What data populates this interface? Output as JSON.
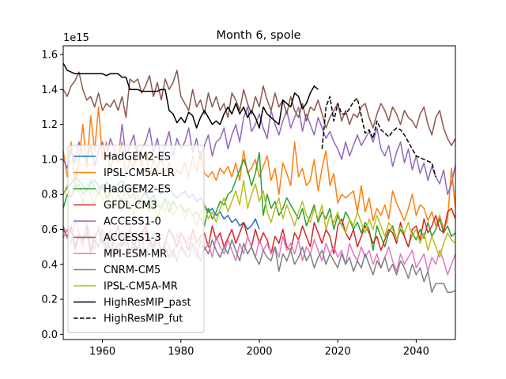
{
  "chart_data": {
    "type": "line",
    "title": "Month 6, spole",
    "xlabel": "",
    "ylabel": "",
    "y_offset_label": "1e15",
    "xlim": [
      1950,
      2050
    ],
    "ylim": [
      -0.03,
      1.65
    ],
    "x_ticks": [
      1960,
      1980,
      2000,
      2020,
      2040
    ],
    "y_ticks": [
      0.0,
      0.2,
      0.4,
      0.6,
      0.8,
      1.0,
      1.2,
      1.4,
      1.6
    ],
    "y_tick_labels": [
      "0.0",
      "0.2",
      "0.4",
      "0.6",
      "0.8",
      "1.0",
      "1.2",
      "1.4",
      "1.6"
    ],
    "grid": false,
    "legend_position": "lower-left",
    "series": [
      {
        "name": "HadGEM2-ES",
        "color": "#1f77b4",
        "style": "solid",
        "start": 1950,
        "values": [
          0.8,
          0.84,
          0.86,
          0.9,
          0.88,
          0.85,
          0.82,
          0.86,
          0.88,
          0.85,
          0.83,
          0.87,
          0.85,
          0.82,
          0.86,
          0.88,
          0.84,
          0.82,
          0.85,
          0.86,
          0.84,
          0.8,
          0.82,
          0.85,
          0.83,
          0.8,
          0.82,
          0.84,
          0.8,
          0.78,
          0.8,
          0.82,
          0.78,
          0.8,
          0.76,
          0.78,
          0.74,
          0.7,
          0.72,
          0.68,
          0.7,
          0.66,
          0.68,
          0.64,
          0.66,
          0.62,
          0.64,
          0.6,
          0.62,
          0.66,
          0.6
        ]
      },
      {
        "name": "IPSL-CM5A-LR",
        "color": "#ff7f0e",
        "style": "solid",
        "start": 1950,
        "values": [
          1.05,
          0.9,
          1.1,
          0.85,
          1.0,
          1.2,
          0.95,
          1.25,
          1.05,
          1.3,
          1.0,
          1.1,
          0.92,
          1.05,
          0.98,
          1.1,
          0.9,
          1.0,
          0.95,
          1.08,
          0.96,
          1.05,
          0.9,
          1.0,
          0.94,
          1.02,
          0.92,
          0.98,
          0.9,
          0.94,
          0.92,
          0.98,
          0.9,
          1.02,
          0.93,
          1.05,
          0.92,
          0.9,
          0.93,
          0.88,
          0.95,
          0.92,
          0.96,
          0.9,
          0.98,
          0.88,
          1.05,
          0.92,
          0.95,
          1.0,
          0.9,
          0.96,
          1.02,
          0.88,
          0.95,
          0.8,
          0.98,
          0.92,
          0.85,
          1.1,
          0.9,
          0.95,
          0.85,
          0.88,
          1.0,
          0.82,
          0.95,
          1.05,
          0.85,
          0.92,
          0.75,
          0.8,
          0.78,
          0.8,
          0.82,
          0.7,
          0.85,
          0.7,
          0.78,
          0.65,
          0.72,
          0.68,
          0.74,
          0.66,
          0.82,
          0.75,
          0.7,
          0.65,
          0.72,
          0.8,
          0.68,
          0.74,
          0.72,
          0.65,
          0.7,
          0.62,
          0.68,
          0.6,
          0.65,
          0.95,
          0.72
        ]
      },
      {
        "name": "HadGEM2-ES",
        "color": "#2ca02c",
        "style": "solid",
        "start": 1950,
        "values": [
          0.72,
          0.8,
          0.78,
          0.84,
          0.86,
          0.8,
          0.82,
          0.88,
          0.84,
          0.8,
          0.86,
          0.78,
          0.82,
          0.85,
          0.8,
          0.76,
          0.82,
          0.78,
          0.8,
          0.74,
          0.78,
          0.82,
          0.76,
          0.8,
          0.74,
          0.72,
          0.78,
          0.7,
          0.76,
          0.72,
          0.74,
          0.7,
          0.72,
          0.68,
          0.7,
          0.66,
          0.62,
          0.72,
          0.66,
          0.7,
          0.76,
          0.74,
          0.8,
          0.82,
          0.88,
          0.94,
          1.0,
          0.94,
          0.85,
          0.92,
          1.04,
          0.68,
          0.8,
          0.72,
          0.76,
          0.68,
          0.72,
          0.78,
          0.74,
          0.7,
          0.66,
          0.72,
          0.62,
          0.68,
          0.74,
          0.64,
          0.7,
          0.66,
          0.72,
          0.6,
          0.68,
          0.62,
          0.7,
          0.66,
          0.6,
          0.64,
          0.58,
          0.64,
          0.6,
          0.48,
          0.62,
          0.56,
          0.5,
          0.58,
          0.62,
          0.54,
          0.6,
          0.56,
          0.5,
          0.58,
          0.54,
          0.6,
          0.55,
          0.64,
          0.56,
          0.6,
          0.66,
          0.58,
          0.62,
          0.56,
          0.58
        ]
      },
      {
        "name": "GFDL-CM3",
        "color": "#d62728",
        "style": "solid",
        "start": 1950,
        "values": [
          0.6,
          0.56,
          0.62,
          0.5,
          0.58,
          0.54,
          0.62,
          0.48,
          0.56,
          0.6,
          0.52,
          0.58,
          0.46,
          0.55,
          0.62,
          0.5,
          0.56,
          0.6,
          0.52,
          0.48,
          0.58,
          0.62,
          0.54,
          0.5,
          0.58,
          0.46,
          0.52,
          0.6,
          0.56,
          0.5,
          0.58,
          0.54,
          0.48,
          0.6,
          0.52,
          0.56,
          0.58,
          0.5,
          0.62,
          0.54,
          0.58,
          0.5,
          0.55,
          0.6,
          0.52,
          0.58,
          0.64,
          0.56,
          0.5,
          0.6,
          0.52,
          0.58,
          0.54,
          0.46,
          0.56,
          0.52,
          0.6,
          0.5,
          0.48,
          0.58,
          0.54,
          0.62,
          0.56,
          0.5,
          0.64,
          0.58,
          0.52,
          0.6,
          0.56,
          0.46,
          0.62,
          0.66,
          0.58,
          0.54,
          0.6,
          0.5,
          0.56,
          0.62,
          0.58,
          0.52,
          0.56,
          0.48,
          0.54,
          0.6,
          0.58,
          0.52,
          0.64,
          0.56,
          0.5,
          0.6,
          0.62,
          0.54,
          0.66,
          0.58,
          0.62,
          0.68,
          0.6,
          0.58,
          0.7,
          0.72,
          0.66
        ]
      },
      {
        "name": "ACCESS1-0",
        "color": "#9467bd",
        "style": "solid",
        "start": 1950,
        "values": [
          1.0,
          0.95,
          1.05,
          0.98,
          1.1,
          1.02,
          1.0,
          1.08,
          0.96,
          1.05,
          1.1,
          1.0,
          1.12,
          1.06,
          1.0,
          1.2,
          1.02,
          1.08,
          1.14,
          1.0,
          1.06,
          1.1,
          1.18,
          1.04,
          1.12,
          1.0,
          1.08,
          1.16,
          1.02,
          1.12,
          1.06,
          1.1,
          1.18,
          1.04,
          1.12,
          1.0,
          1.08,
          1.14,
          1.02,
          1.1,
          1.12,
          1.18,
          1.06,
          1.14,
          1.2,
          1.1,
          1.24,
          1.3,
          1.16,
          1.2,
          1.26,
          1.18,
          1.12,
          1.28,
          1.2,
          1.14,
          1.22,
          1.28,
          1.18,
          1.24,
          1.3,
          1.16,
          1.26,
          1.2,
          1.14,
          1.24,
          1.18,
          1.12,
          1.16,
          1.1,
          1.06,
          1.0,
          1.1,
          1.02,
          1.08,
          1.14,
          1.08,
          1.12,
          1.16,
          1.1,
          1.18,
          1.06,
          1.02,
          1.08,
          0.96,
          1.04,
          1.1,
          0.98,
          1.06,
          0.94,
          1.02,
          0.92,
          0.98,
          0.88,
          0.96,
          0.9,
          0.86,
          0.94,
          0.8,
          0.86,
          0.97
        ]
      },
      {
        "name": "ACCESS1-3",
        "color": "#8c564b",
        "style": "solid",
        "start": 1950,
        "values": [
          1.4,
          1.36,
          1.42,
          1.45,
          1.5,
          1.4,
          1.34,
          1.36,
          1.3,
          1.38,
          1.28,
          1.32,
          1.3,
          1.34,
          1.28,
          1.36,
          1.24,
          1.46,
          1.44,
          1.46,
          1.38,
          1.42,
          1.48,
          1.36,
          1.44,
          1.34,
          1.46,
          1.4,
          1.44,
          1.51,
          1.36,
          1.32,
          1.28,
          1.4,
          1.3,
          1.34,
          1.26,
          1.38,
          1.3,
          1.36,
          1.28,
          1.32,
          1.24,
          1.38,
          1.34,
          1.28,
          1.4,
          1.32,
          1.26,
          1.36,
          1.3,
          1.42,
          1.34,
          1.28,
          1.38,
          1.3,
          1.34,
          1.26,
          1.36,
          1.28,
          1.24,
          1.32,
          1.22,
          1.3,
          1.28,
          1.34,
          1.26,
          1.18,
          1.24,
          1.28,
          1.32,
          1.22,
          1.28,
          1.2,
          1.26,
          1.24,
          1.3,
          1.32,
          1.24,
          1.18,
          1.26,
          1.32,
          1.28,
          1.22,
          1.3,
          1.26,
          1.2,
          1.28,
          1.24,
          1.22,
          1.18,
          1.26,
          1.3,
          1.2,
          1.14,
          1.24,
          1.28,
          1.18,
          1.12,
          1.08,
          1.12
        ]
      },
      {
        "name": "MPI-ESM-MR",
        "color": "#e377c2",
        "style": "solid",
        "start": 1950,
        "values": [
          0.55,
          0.6,
          0.52,
          0.66,
          0.58,
          0.5,
          0.64,
          0.56,
          0.48,
          0.62,
          0.54,
          0.46,
          0.6,
          0.52,
          0.45,
          0.58,
          0.5,
          0.62,
          0.48,
          0.56,
          0.44,
          0.6,
          0.52,
          0.48,
          0.56,
          0.46,
          0.54,
          0.5,
          0.44,
          0.58,
          0.52,
          0.46,
          0.56,
          0.5,
          0.44,
          0.54,
          0.48,
          0.52,
          0.44,
          0.56,
          0.5,
          0.46,
          0.54,
          0.48,
          0.42,
          0.52,
          0.46,
          0.56,
          0.5,
          0.44,
          0.54,
          0.48,
          0.52,
          0.46,
          0.5,
          0.44,
          0.56,
          0.48,
          0.52,
          0.46,
          0.54,
          0.42,
          0.5,
          0.46,
          0.54,
          0.48,
          0.42,
          0.52,
          0.46,
          0.5,
          0.44,
          0.48,
          0.4,
          0.52,
          0.46,
          0.42,
          0.5,
          0.44,
          0.48,
          0.4,
          0.46,
          0.38,
          0.44,
          0.5,
          0.42,
          0.36,
          0.46,
          0.4,
          0.44,
          0.48,
          0.38,
          0.42,
          0.46,
          0.36,
          0.44,
          0.4,
          0.48,
          0.42,
          0.34,
          0.4,
          0.46
        ]
      },
      {
        "name": "CNRM-CM5",
        "color": "#7f7f7f",
        "style": "solid",
        "start": 1950,
        "values": [
          0.62,
          0.55,
          0.6,
          0.48,
          0.56,
          0.52,
          0.58,
          0.46,
          0.54,
          0.5,
          0.6,
          0.48,
          0.56,
          0.44,
          0.52,
          0.5,
          0.58,
          0.46,
          0.54,
          0.48,
          0.56,
          0.44,
          0.52,
          0.48,
          0.56,
          0.46,
          0.5,
          0.44,
          0.48,
          0.42,
          0.5,
          0.46,
          0.44,
          0.52,
          0.48,
          0.42,
          0.5,
          0.46,
          0.54,
          0.48,
          0.44,
          0.5,
          0.46,
          0.54,
          0.48,
          0.42,
          0.52,
          0.46,
          0.5,
          0.44,
          0.4,
          0.48,
          0.44,
          0.42,
          0.5,
          0.36,
          0.46,
          0.42,
          0.48,
          0.4,
          0.44,
          0.5,
          0.42,
          0.46,
          0.38,
          0.44,
          0.48,
          0.4,
          0.46,
          0.42,
          0.38,
          0.46,
          0.4,
          0.44,
          0.36,
          0.42,
          0.38,
          0.46,
          0.4,
          0.34,
          0.42,
          0.38,
          0.44,
          0.36,
          0.4,
          0.34,
          0.42,
          0.38,
          0.32,
          0.4,
          0.34,
          0.38,
          0.3,
          0.36,
          0.24,
          0.29,
          0.29,
          0.29,
          0.24,
          0.24,
          0.25
        ]
      },
      {
        "name": "IPSL-CM5A-MR",
        "color": "#bcbd22",
        "style": "solid",
        "start": 1950,
        "values": [
          0.8,
          0.85,
          0.78,
          0.88,
          0.82,
          0.75,
          0.86,
          0.8,
          0.74,
          0.84,
          0.78,
          0.72,
          0.82,
          0.76,
          0.8,
          0.7,
          0.78,
          0.74,
          0.68,
          0.8,
          0.72,
          0.76,
          0.7,
          0.78,
          0.66,
          0.74,
          0.7,
          0.76,
          0.68,
          0.72,
          0.74,
          0.66,
          0.72,
          0.68,
          0.62,
          0.7,
          0.74,
          0.66,
          0.7,
          0.64,
          0.72,
          0.78,
          0.7,
          0.76,
          0.82,
          0.74,
          0.88,
          0.72,
          0.8,
          0.86,
          0.76,
          0.82,
          0.7,
          0.64,
          0.72,
          0.78,
          0.66,
          0.74,
          0.68,
          0.62,
          0.7,
          0.76,
          0.68,
          0.64,
          0.72,
          0.66,
          0.74,
          0.6,
          0.68,
          0.64,
          0.7,
          0.62,
          0.58,
          0.66,
          0.62,
          0.7,
          0.64,
          0.58,
          0.66,
          0.6,
          0.68,
          0.62,
          0.56,
          0.64,
          0.6,
          0.54,
          0.62,
          0.58,
          0.64,
          0.56,
          0.6,
          0.52,
          0.58,
          0.48,
          0.56,
          0.5,
          0.44,
          0.52,
          0.58,
          0.54,
          0.52
        ]
      },
      {
        "name": "HighResMIP_past",
        "color": "#000000",
        "style": "solid",
        "start": 1950,
        "values": [
          1.55,
          1.51,
          1.5,
          1.49,
          1.49,
          1.49,
          1.49,
          1.49,
          1.49,
          1.49,
          1.49,
          1.48,
          1.49,
          1.49,
          1.49,
          1.47,
          1.47,
          1.4,
          1.4,
          1.4,
          1.39,
          1.39,
          1.39,
          1.39,
          1.39,
          1.4,
          1.4,
          1.28,
          1.26,
          1.21,
          1.24,
          1.21,
          1.27,
          1.25,
          1.18,
          1.24,
          1.28,
          1.24,
          1.2,
          1.22,
          1.2,
          1.26,
          1.3,
          1.26,
          1.32,
          1.26,
          1.3,
          1.24,
          1.28,
          1.24,
          1.18,
          1.3,
          1.26,
          1.24,
          1.22,
          1.2,
          1.34,
          1.32,
          1.3,
          1.38,
          1.36,
          1.29,
          1.32,
          1.38,
          1.42,
          1.4
        ]
      },
      {
        "name": "HighResMIP_fut",
        "color": "#000000",
        "style": "dashed",
        "start": 2016,
        "values": [
          1.06,
          1.3,
          1.36,
          1.22,
          1.32,
          1.26,
          1.26,
          1.29,
          1.33,
          1.35,
          1.25,
          1.15,
          1.17,
          1.12,
          1.22,
          1.17,
          1.15,
          1.13,
          1.16,
          1.18,
          1.17,
          1.14,
          1.1,
          1.06,
          1.02,
          1.01,
          1.0,
          0.99,
          0.98,
          0.9
        ]
      }
    ]
  }
}
